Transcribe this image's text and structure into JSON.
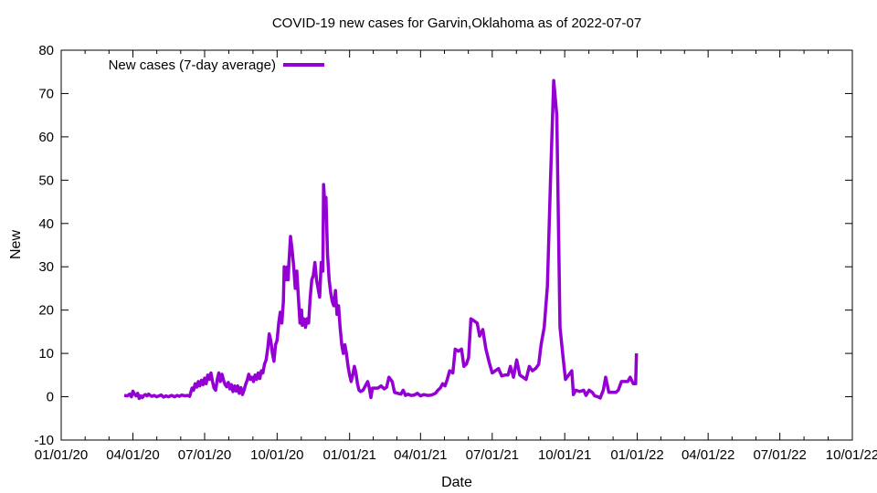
{
  "chart_data": {
    "type": "line",
    "title": "COVID-19 new cases for Garvin,Oklahoma as of 2022-07-07",
    "xlabel": "Date",
    "ylabel": "New",
    "xlim_days": [
      0,
      1004
    ],
    "ylim": [
      -10,
      80
    ],
    "yticks": [
      -10,
      0,
      10,
      20,
      30,
      40,
      50,
      60,
      70,
      80
    ],
    "xticks": [
      {
        "label": "01/01/20",
        "day": 0
      },
      {
        "label": "04/01/20",
        "day": 91
      },
      {
        "label": "07/01/20",
        "day": 182
      },
      {
        "label": "10/01/20",
        "day": 274
      },
      {
        "label": "01/01/21",
        "day": 366
      },
      {
        "label": "04/01/21",
        "day": 456
      },
      {
        "label": "07/01/21",
        "day": 547
      },
      {
        "label": "10/01/21",
        "day": 639
      },
      {
        "label": "01/01/22",
        "day": 731
      },
      {
        "label": "04/01/22",
        "day": 821
      },
      {
        "label": "07/01/22",
        "day": 912
      },
      {
        "label": "10/01/22",
        "day": 1004
      }
    ],
    "grid": false,
    "legend_position": "top-left",
    "series": [
      {
        "name": "New cases (7-day average)",
        "color": "#9400d3",
        "x_unit": "days since 2020-01-01",
        "points": [
          [
            80,
            0.3
          ],
          [
            84,
            0.2
          ],
          [
            87,
            0.6
          ],
          [
            89,
            0
          ],
          [
            91,
            1.3
          ],
          [
            93,
            0.6
          ],
          [
            95,
            0.2
          ],
          [
            97,
            0.8
          ],
          [
            99,
            -0.4
          ],
          [
            101,
            0.2
          ],
          [
            103,
            -0.2
          ],
          [
            105,
            0.3
          ],
          [
            107,
            0.5
          ],
          [
            109,
            0.2
          ],
          [
            111,
            0.6
          ],
          [
            113,
            0.3
          ],
          [
            115,
            0.1
          ],
          [
            118,
            0.3
          ],
          [
            121,
            0
          ],
          [
            124,
            0.2
          ],
          [
            127,
            0.4
          ],
          [
            130,
            -0.1
          ],
          [
            133,
            0.2
          ],
          [
            136,
            0
          ],
          [
            140,
            0.3
          ],
          [
            144,
            0
          ],
          [
            147,
            0.3
          ],
          [
            150,
            0.1
          ],
          [
            153,
            0.4
          ],
          [
            157,
            0.2
          ],
          [
            160,
            0.3
          ],
          [
            163,
            0.1
          ],
          [
            166,
            2
          ],
          [
            168,
            1.5
          ],
          [
            170,
            3
          ],
          [
            172,
            2.2
          ],
          [
            174,
            3.5
          ],
          [
            176,
            2.5
          ],
          [
            178,
            3.8
          ],
          [
            180,
            2.8
          ],
          [
            182,
            4.3
          ],
          [
            184,
            3
          ],
          [
            186,
            5
          ],
          [
            188,
            4
          ],
          [
            190,
            5.5
          ],
          [
            192,
            3.5
          ],
          [
            194,
            2
          ],
          [
            196,
            1.5
          ],
          [
            198,
            4
          ],
          [
            200,
            5.5
          ],
          [
            202,
            3.5
          ],
          [
            204,
            5.2
          ],
          [
            206,
            3.8
          ],
          [
            208,
            2.8
          ],
          [
            210,
            2.3
          ],
          [
            212,
            3.3
          ],
          [
            214,
            1.8
          ],
          [
            216,
            2.8
          ],
          [
            218,
            1.2
          ],
          [
            220,
            2.5
          ],
          [
            222,
            1.3
          ],
          [
            224,
            2.5
          ],
          [
            226,
            0.8
          ],
          [
            228,
            2.1
          ],
          [
            230,
            0.5
          ],
          [
            232,
            1.5
          ],
          [
            234,
            2.8
          ],
          [
            236,
            3.8
          ],
          [
            238,
            5.2
          ],
          [
            240,
            4
          ],
          [
            242,
            4.5
          ],
          [
            244,
            3.5
          ],
          [
            246,
            5
          ],
          [
            248,
            4
          ],
          [
            250,
            5.5
          ],
          [
            252,
            4.2
          ],
          [
            254,
            6
          ],
          [
            256,
            5.5
          ],
          [
            258,
            7.5
          ],
          [
            260,
            8.5
          ],
          [
            262,
            11
          ],
          [
            264,
            14.5
          ],
          [
            266,
            13
          ],
          [
            268,
            10
          ],
          [
            270,
            8.2
          ],
          [
            272,
            12
          ],
          [
            274,
            13
          ],
          [
            276,
            17
          ],
          [
            278,
            19.5
          ],
          [
            280,
            17
          ],
          [
            282,
            22
          ],
          [
            283,
            30
          ],
          [
            285,
            27
          ],
          [
            287,
            30
          ],
          [
            288,
            27
          ],
          [
            289,
            31
          ],
          [
            291,
            37
          ],
          [
            293,
            34
          ],
          [
            295,
            30
          ],
          [
            297,
            25
          ],
          [
            299,
            29
          ],
          [
            301,
            23
          ],
          [
            303,
            17
          ],
          [
            305,
            20
          ],
          [
            306,
            16.5
          ],
          [
            308,
            18
          ],
          [
            310,
            16
          ],
          [
            312,
            18
          ],
          [
            314,
            17
          ],
          [
            316,
            23
          ],
          [
            318,
            27
          ],
          [
            320,
            28
          ],
          [
            322,
            31
          ],
          [
            324,
            27
          ],
          [
            326,
            25
          ],
          [
            328,
            23
          ],
          [
            330,
            31
          ],
          [
            332,
            29
          ],
          [
            333,
            49
          ],
          [
            335,
            43
          ],
          [
            336,
            46
          ],
          [
            338,
            33
          ],
          [
            340,
            27
          ],
          [
            342,
            24
          ],
          [
            344,
            22
          ],
          [
            346,
            21
          ],
          [
            348,
            24.5
          ],
          [
            350,
            19
          ],
          [
            352,
            21
          ],
          [
            354,
            16
          ],
          [
            356,
            12
          ],
          [
            358,
            10
          ],
          [
            360,
            12
          ],
          [
            362,
            10
          ],
          [
            364,
            7
          ],
          [
            366,
            5
          ],
          [
            368,
            3.5
          ],
          [
            370,
            5
          ],
          [
            372,
            7
          ],
          [
            374,
            5.5
          ],
          [
            376,
            3
          ],
          [
            378,
            1.5
          ],
          [
            380,
            1.2
          ],
          [
            383,
            1.5
          ],
          [
            386,
            2.5
          ],
          [
            389,
            3.5
          ],
          [
            391,
            2
          ],
          [
            393,
            -0.2
          ],
          [
            395,
            2
          ],
          [
            398,
            2
          ],
          [
            402,
            2
          ],
          [
            406,
            2.5
          ],
          [
            410,
            1.8
          ],
          [
            413,
            2.2
          ],
          [
            416,
            4.5
          ],
          [
            420,
            3.5
          ],
          [
            423,
            1
          ],
          [
            427,
            0.8
          ],
          [
            431,
            0.6
          ],
          [
            434,
            1.5
          ],
          [
            437,
            0.3
          ],
          [
            440,
            0.6
          ],
          [
            444,
            0.3
          ],
          [
            448,
            0.4
          ],
          [
            452,
            0.8
          ],
          [
            456,
            0.2
          ],
          [
            460,
            0.5
          ],
          [
            465,
            0.3
          ],
          [
            470,
            0.4
          ],
          [
            475,
            0.8
          ],
          [
            478,
            1.5
          ],
          [
            481,
            2
          ],
          [
            484,
            3
          ],
          [
            487,
            2.5
          ],
          [
            490,
            4
          ],
          [
            493,
            6
          ],
          [
            497,
            5.5
          ],
          [
            500,
            11
          ],
          [
            504,
            10.5
          ],
          [
            508,
            11
          ],
          [
            511,
            7
          ],
          [
            514,
            7.5
          ],
          [
            517,
            9
          ],
          [
            520,
            18
          ],
          [
            524,
            17.5
          ],
          [
            528,
            17
          ],
          [
            531,
            14
          ],
          [
            535,
            15.5
          ],
          [
            539,
            11
          ],
          [
            543,
            8
          ],
          [
            547,
            5.5
          ],
          [
            551,
            6
          ],
          [
            555,
            6.5
          ],
          [
            559,
            4.8
          ],
          [
            563,
            5
          ],
          [
            567,
            5
          ],
          [
            570,
            7
          ],
          [
            574,
            4.5
          ],
          [
            578,
            8.5
          ],
          [
            582,
            5
          ],
          [
            586,
            4.5
          ],
          [
            590,
            4
          ],
          [
            594,
            7
          ],
          [
            598,
            6
          ],
          [
            602,
            6.5
          ],
          [
            606,
            7.5
          ],
          [
            609,
            12
          ],
          [
            613,
            16
          ],
          [
            617,
            25.5
          ],
          [
            621,
            50
          ],
          [
            625,
            73
          ],
          [
            629,
            65
          ],
          [
            633,
            16
          ],
          [
            637,
            9
          ],
          [
            640,
            4
          ],
          [
            644,
            5
          ],
          [
            648,
            6
          ],
          [
            650,
            0.5
          ],
          [
            653,
            1.5
          ],
          [
            658,
            1.2
          ],
          [
            663,
            1.5
          ],
          [
            666,
            0.3
          ],
          [
            670,
            1.5
          ],
          [
            674,
            1
          ],
          [
            677,
            0.2
          ],
          [
            681,
            0
          ],
          [
            684,
            -0.3
          ],
          [
            688,
            1.5
          ],
          [
            691,
            4.5
          ],
          [
            695,
            1
          ],
          [
            700,
            1
          ],
          [
            704,
            1
          ],
          [
            707,
            1.5
          ],
          [
            711,
            3.5
          ],
          [
            715,
            3.5
          ],
          [
            719,
            3.5
          ],
          [
            722,
            4.5
          ],
          [
            726,
            3
          ],
          [
            729,
            3
          ],
          [
            730,
            10
          ]
        ]
      }
    ]
  },
  "legend": {
    "label": "New cases (7-day average)"
  }
}
